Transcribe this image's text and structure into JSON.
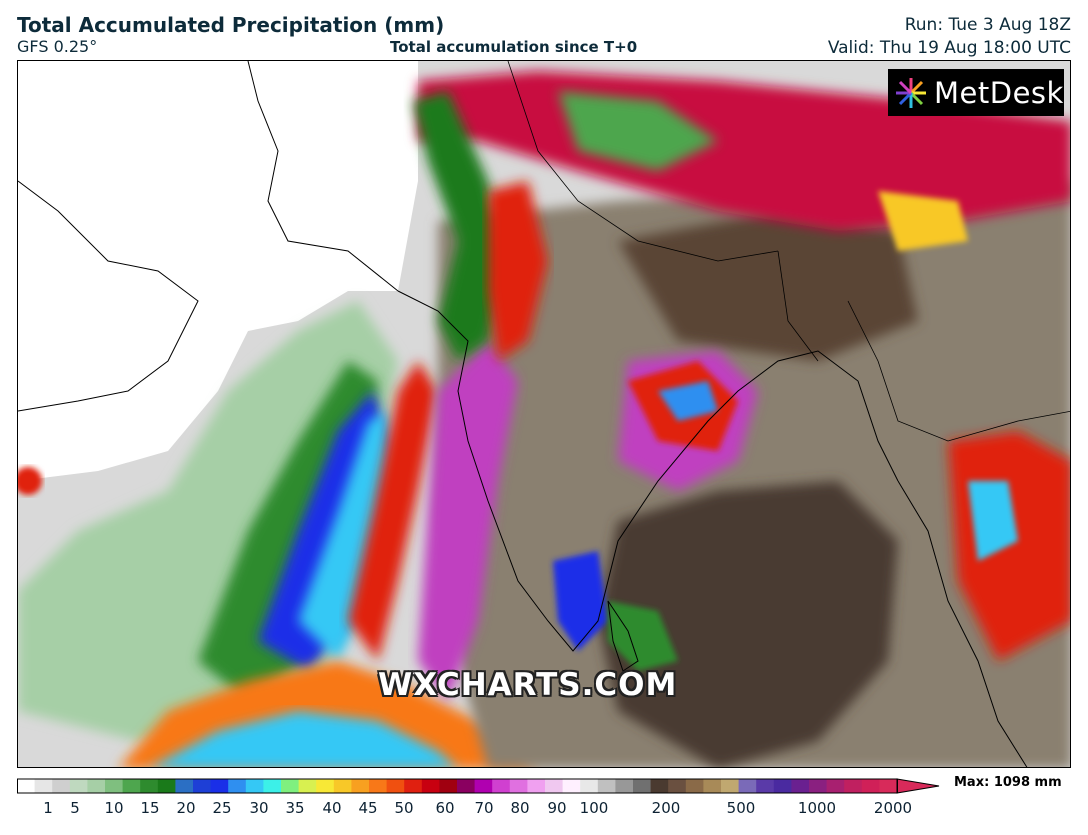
{
  "header": {
    "title": "Total Accumulated Precipitation (mm)",
    "model": "GFS 0.25°",
    "subtitle": "Total accumulation since T+0",
    "run": "Run: Tue 3 Aug 18Z",
    "valid": "Valid: Thu 19 Aug 18:00 UTC"
  },
  "logo": {
    "text": "MetDesk",
    "icon": "sunburst-logo-icon"
  },
  "watermark": "WXCHARTS.COM",
  "legend": {
    "max_label": "Max: 1098 mm",
    "ticks": [
      "1",
      "5",
      "10",
      "15",
      "20",
      "25",
      "30",
      "35",
      "40",
      "45",
      "50",
      "60",
      "70",
      "80",
      "90",
      "100",
      "200",
      "500",
      "1000",
      "2000"
    ],
    "colors": [
      "#ffffff",
      "#e6e6e6",
      "#cfcfcf",
      "#bfd9bf",
      "#a6cfa6",
      "#7fbf7f",
      "#4ea64e",
      "#2e8b2e",
      "#1a7a1a",
      "#2b6fc4",
      "#1e3fd6",
      "#1a2fe8",
      "#2f8ff0",
      "#35c8f5",
      "#3cf0e8",
      "#7ff07f",
      "#d8f050",
      "#f8e836",
      "#f8c828",
      "#f8a020",
      "#f87818",
      "#f05010",
      "#e02010",
      "#c80010",
      "#a00010",
      "#8a0060",
      "#b000b0",
      "#d040d0",
      "#e070e0",
      "#f0a0f0",
      "#f0c8f0",
      "#fff0ff",
      "#e8e8e8",
      "#c0c0c0",
      "#989898",
      "#707070",
      "#4a3a30",
      "#6a5040",
      "#8a6a48",
      "#a88a58",
      "#c0a870",
      "#7a6ab8",
      "#5a3aa8",
      "#4a2aa0",
      "#6a2090",
      "#8a2080",
      "#a82070",
      "#c02060",
      "#d02058",
      "#d82a5a"
    ]
  }
}
